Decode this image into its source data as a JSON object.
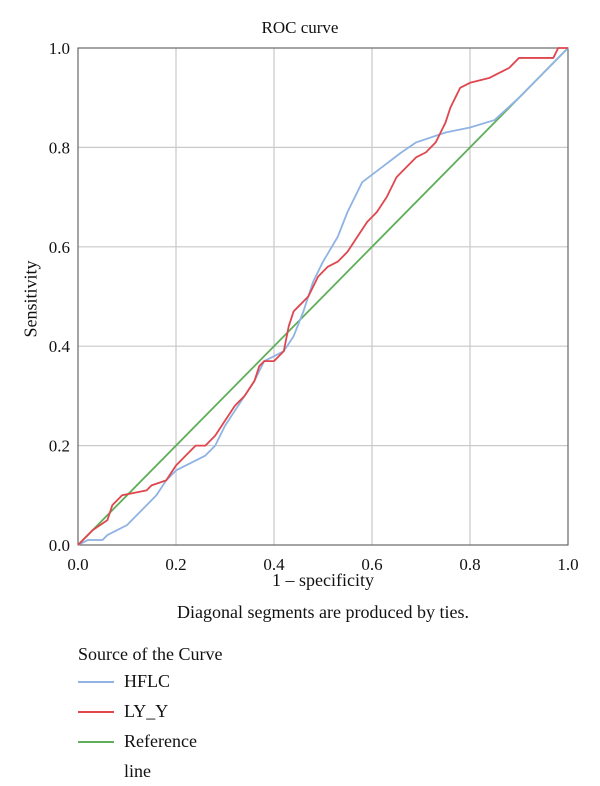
{
  "chart_data": {
    "type": "line",
    "title": "ROC curve",
    "xlabel": "1 – specificity",
    "ylabel": "Sensitivity",
    "note": "Diagonal segments are produced by ties.",
    "xlim": [
      0,
      1
    ],
    "ylim": [
      0,
      1
    ],
    "x_ticks": [
      "0.0",
      "0.2",
      "0.4",
      "0.6",
      "0.8",
      "1.0"
    ],
    "y_ticks": [
      "0.0",
      "0.2",
      "0.4",
      "0.6",
      "0.8",
      "1.0"
    ],
    "grid": true,
    "legend_position": "bottom-left",
    "legend_title": "Source of the Curve",
    "series": [
      {
        "name": "HFLC",
        "color": "#8fb3e3",
        "points": [
          [
            0,
            0
          ],
          [
            0.02,
            0.01
          ],
          [
            0.05,
            0.01
          ],
          [
            0.06,
            0.02
          ],
          [
            0.08,
            0.03
          ],
          [
            0.1,
            0.04
          ],
          [
            0.12,
            0.06
          ],
          [
            0.14,
            0.08
          ],
          [
            0.16,
            0.1
          ],
          [
            0.18,
            0.13
          ],
          [
            0.2,
            0.15
          ],
          [
            0.22,
            0.16
          ],
          [
            0.24,
            0.17
          ],
          [
            0.26,
            0.18
          ],
          [
            0.28,
            0.2
          ],
          [
            0.3,
            0.24
          ],
          [
            0.32,
            0.27
          ],
          [
            0.34,
            0.3
          ],
          [
            0.36,
            0.33
          ],
          [
            0.38,
            0.37
          ],
          [
            0.4,
            0.38
          ],
          [
            0.42,
            0.39
          ],
          [
            0.44,
            0.42
          ],
          [
            0.46,
            0.47
          ],
          [
            0.48,
            0.53
          ],
          [
            0.5,
            0.57
          ],
          [
            0.53,
            0.62
          ],
          [
            0.55,
            0.67
          ],
          [
            0.58,
            0.73
          ],
          [
            0.62,
            0.76
          ],
          [
            0.66,
            0.79
          ],
          [
            0.69,
            0.81
          ],
          [
            0.75,
            0.83
          ],
          [
            0.8,
            0.84
          ],
          [
            0.85,
            0.855
          ],
          [
            0.9,
            0.9
          ],
          [
            0.95,
            0.95
          ],
          [
            1,
            1
          ]
        ]
      },
      {
        "name": "LY_Y",
        "color": "#e0464e",
        "points": [
          [
            0,
            0
          ],
          [
            0.02,
            0.02
          ],
          [
            0.03,
            0.03
          ],
          [
            0.06,
            0.05
          ],
          [
            0.07,
            0.08
          ],
          [
            0.09,
            0.1
          ],
          [
            0.14,
            0.11
          ],
          [
            0.15,
            0.12
          ],
          [
            0.18,
            0.13
          ],
          [
            0.2,
            0.16
          ],
          [
            0.22,
            0.18
          ],
          [
            0.24,
            0.2
          ],
          [
            0.26,
            0.2
          ],
          [
            0.28,
            0.22
          ],
          [
            0.3,
            0.25
          ],
          [
            0.32,
            0.28
          ],
          [
            0.34,
            0.3
          ],
          [
            0.36,
            0.33
          ],
          [
            0.37,
            0.36
          ],
          [
            0.38,
            0.37
          ],
          [
            0.4,
            0.37
          ],
          [
            0.42,
            0.39
          ],
          [
            0.43,
            0.44
          ],
          [
            0.44,
            0.47
          ],
          [
            0.45,
            0.48
          ],
          [
            0.47,
            0.5
          ],
          [
            0.49,
            0.54
          ],
          [
            0.51,
            0.56
          ],
          [
            0.53,
            0.57
          ],
          [
            0.55,
            0.59
          ],
          [
            0.57,
            0.62
          ],
          [
            0.59,
            0.65
          ],
          [
            0.61,
            0.67
          ],
          [
            0.63,
            0.7
          ],
          [
            0.65,
            0.74
          ],
          [
            0.67,
            0.76
          ],
          [
            0.69,
            0.78
          ],
          [
            0.71,
            0.79
          ],
          [
            0.73,
            0.81
          ],
          [
            0.74,
            0.83
          ],
          [
            0.75,
            0.85
          ],
          [
            0.76,
            0.88
          ],
          [
            0.77,
            0.9
          ],
          [
            0.78,
            0.92
          ],
          [
            0.8,
            0.93
          ],
          [
            0.84,
            0.94
          ],
          [
            0.86,
            0.95
          ],
          [
            0.88,
            0.96
          ],
          [
            0.9,
            0.98
          ],
          [
            0.97,
            0.98
          ],
          [
            0.98,
            1
          ],
          [
            1,
            1
          ]
        ]
      },
      {
        "name": "Reference line",
        "color": "#5fae5a",
        "points": [
          [
            0,
            0
          ],
          [
            1,
            1
          ]
        ]
      }
    ]
  }
}
